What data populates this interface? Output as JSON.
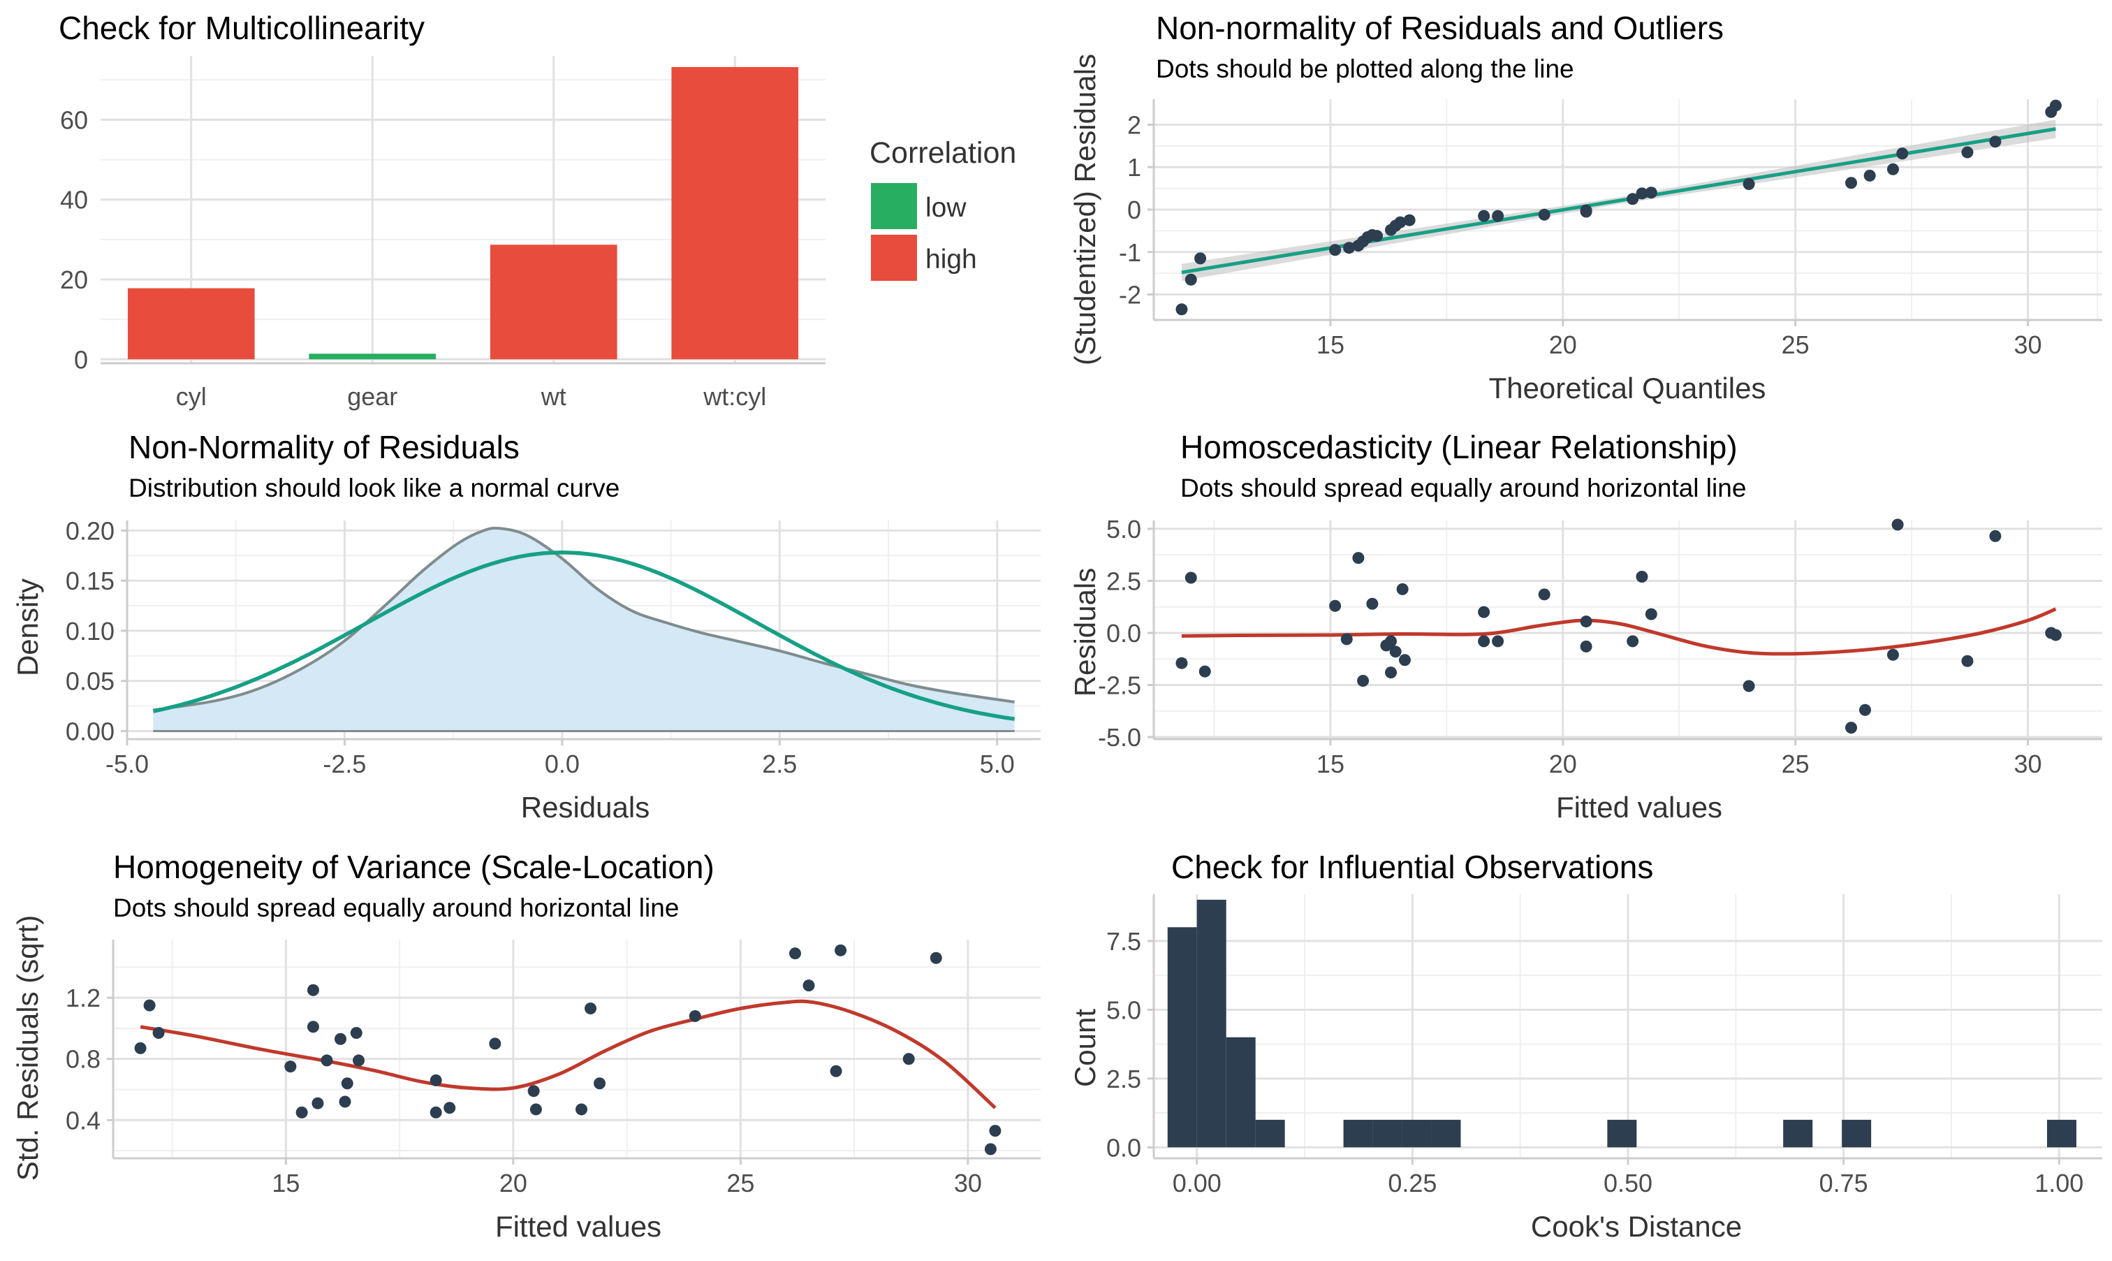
{
  "colors": {
    "high": "#e74c3c",
    "low": "#27ae60",
    "dark": "#2c3e50",
    "line_green": "#16a085",
    "line_red": "#c0392b",
    "density_fill": "#d4e8f6",
    "density_line": "#7f8c8d"
  },
  "chart_data": [
    {
      "id": "multicollinearity",
      "type": "bar",
      "title": "Check for Multicollinearity",
      "subtitle": "",
      "xlabel": "",
      "ylabel": "",
      "categories": [
        "cyl",
        "gear",
        "wt",
        "wt:cyl"
      ],
      "values": [
        17.8,
        1.4,
        28.7,
        73.2
      ],
      "correlation": [
        "high",
        "low",
        "high",
        "high"
      ],
      "ylim": [
        -1,
        76
      ],
      "yticks": [
        0,
        20,
        40,
        60
      ],
      "legend": {
        "title": "Correlation",
        "entries": [
          "low",
          "high"
        ],
        "position": "right"
      },
      "grid": true
    },
    {
      "id": "qq",
      "type": "scatter",
      "title": "Non-normality of Residuals and Outliers",
      "subtitle": "Dots should be plotted along the line",
      "xlabel": "Theoretical Quantiles",
      "ylabel": "(Studentized) Residuals",
      "xlim": [
        11.2,
        31.6
      ],
      "ylim": [
        -2.6,
        2.6
      ],
      "xticks": [
        15,
        20,
        25,
        30
      ],
      "yticks": [
        -2,
        -1,
        0,
        1,
        2
      ],
      "points": [
        [
          11.8,
          -2.35
        ],
        [
          12.0,
          -1.65
        ],
        [
          12.2,
          -1.15
        ],
        [
          15.1,
          -0.95
        ],
        [
          15.4,
          -0.9
        ],
        [
          15.6,
          -0.85
        ],
        [
          15.7,
          -0.75
        ],
        [
          15.8,
          -0.65
        ],
        [
          15.9,
          -0.6
        ],
        [
          16.0,
          -0.62
        ],
        [
          16.3,
          -0.48
        ],
        [
          16.4,
          -0.38
        ],
        [
          16.5,
          -0.3
        ],
        [
          16.7,
          -0.25
        ],
        [
          18.3,
          -0.15
        ],
        [
          18.6,
          -0.15
        ],
        [
          19.6,
          -0.12
        ],
        [
          20.5,
          -0.05
        ],
        [
          20.5,
          -0.02
        ],
        [
          21.5,
          0.25
        ],
        [
          21.7,
          0.38
        ],
        [
          21.9,
          0.4
        ],
        [
          24.0,
          0.6
        ],
        [
          26.2,
          0.63
        ],
        [
          26.6,
          0.8
        ],
        [
          27.1,
          0.95
        ],
        [
          27.3,
          1.32
        ],
        [
          28.7,
          1.35
        ],
        [
          29.3,
          1.6
        ],
        [
          30.5,
          2.3
        ],
        [
          30.6,
          2.45
        ]
      ],
      "line": {
        "x": [
          11.8,
          30.6
        ],
        "y": [
          -1.48,
          1.9
        ]
      },
      "band_halfwidth": [
        0.2,
        0.08,
        0.22
      ],
      "grid": true
    },
    {
      "id": "density",
      "type": "area",
      "title": "Non-Normality of Residuals",
      "subtitle": "Distribution should look like a normal curve",
      "xlabel": "Residuals",
      "ylabel": "Density",
      "xlim": [
        -5.0,
        5.5
      ],
      "ylim": [
        -0.008,
        0.21
      ],
      "xticks": [
        -5.0,
        -2.5,
        0.0,
        2.5,
        5.0
      ],
      "xtick_labels": [
        "-5.0",
        "-2.5",
        "0.0",
        "2.5",
        "5.0"
      ],
      "yticks": [
        0.0,
        0.05,
        0.1,
        0.15,
        0.2
      ],
      "ytick_labels": [
        "0.00",
        "0.05",
        "0.10",
        "0.15",
        "0.20"
      ],
      "density": {
        "x": [
          -4.7,
          -4.0,
          -3.5,
          -3.0,
          -2.5,
          -2.0,
          -1.6,
          -1.2,
          -0.9,
          -0.7,
          -0.4,
          0.0,
          0.4,
          0.8,
          1.2,
          1.6,
          2.0,
          2.5,
          3.0,
          3.5,
          4.0,
          4.5,
          5.2
        ],
        "y": [
          0.021,
          0.03,
          0.042,
          0.062,
          0.09,
          0.128,
          0.16,
          0.187,
          0.2,
          0.202,
          0.195,
          0.172,
          0.142,
          0.12,
          0.108,
          0.098,
          0.09,
          0.08,
          0.068,
          0.057,
          0.046,
          0.038,
          0.029
        ]
      },
      "normal_curve": {
        "mean": 0.0,
        "sd": 2.24
      },
      "grid": true
    },
    {
      "id": "homoscedasticity",
      "type": "scatter",
      "title": "Homoscedasticity (Linear Relationship)",
      "subtitle": "Dots should spread equally around horizontal line",
      "xlabel": "Fitted values",
      "ylabel": "Residuals",
      "xlim": [
        11.2,
        31.6
      ],
      "ylim": [
        -5.1,
        5.4
      ],
      "xticks": [
        15,
        20,
        25,
        30
      ],
      "yticks": [
        -5.0,
        -2.5,
        0.0,
        2.5,
        5.0
      ],
      "ytick_labels": [
        "-5.0",
        "-2.5",
        "0.0",
        "2.5",
        "5.0"
      ],
      "points": [
        [
          11.8,
          -1.45
        ],
        [
          12.0,
          2.65
        ],
        [
          12.3,
          -1.85
        ],
        [
          15.1,
          1.3
        ],
        [
          15.35,
          -0.3
        ],
        [
          15.6,
          3.6
        ],
        [
          15.7,
          -2.3
        ],
        [
          15.9,
          1.4
        ],
        [
          16.2,
          -0.6
        ],
        [
          16.3,
          -1.9
        ],
        [
          16.4,
          -0.9
        ],
        [
          16.6,
          -1.3
        ],
        [
          16.55,
          2.1
        ],
        [
          16.3,
          -0.4
        ],
        [
          18.3,
          1.0
        ],
        [
          18.3,
          -0.4
        ],
        [
          18.6,
          -0.4
        ],
        [
          19.6,
          1.85
        ],
        [
          20.5,
          -0.65
        ],
        [
          20.5,
          0.55
        ],
        [
          21.5,
          -0.4
        ],
        [
          21.7,
          2.7
        ],
        [
          21.9,
          0.9
        ],
        [
          24.0,
          -2.55
        ],
        [
          26.2,
          -4.55
        ],
        [
          26.5,
          -3.7
        ],
        [
          27.1,
          -1.05
        ],
        [
          27.2,
          5.2
        ],
        [
          28.7,
          -1.35
        ],
        [
          29.3,
          4.65
        ],
        [
          30.5,
          0.0
        ],
        [
          30.6,
          -0.1
        ]
      ],
      "smooth": {
        "x": [
          11.8,
          13.0,
          15.0,
          16.5,
          18.3,
          19.5,
          20.4,
          21.2,
          22.0,
          23.0,
          24.0,
          25.0,
          26.0,
          27.0,
          28.0,
          29.0,
          30.0,
          30.6
        ],
        "y": [
          -0.15,
          -0.12,
          -0.1,
          -0.05,
          -0.05,
          0.35,
          0.6,
          0.45,
          0.0,
          -0.6,
          -0.95,
          -1.0,
          -0.9,
          -0.7,
          -0.4,
          0.0,
          0.6,
          1.15
        ]
      },
      "grid": true
    },
    {
      "id": "scale_location",
      "type": "scatter",
      "title": "Homogeneity of Variance (Scale-Location)",
      "subtitle": "Dots should spread equally around horizontal line",
      "xlabel": "Fitted values",
      "ylabel": "Std. Residuals (sqrt)",
      "xlim": [
        11.2,
        31.6
      ],
      "ylim": [
        0.15,
        1.58
      ],
      "xticks": [
        15,
        20,
        25,
        30
      ],
      "yticks": [
        0.4,
        0.8,
        1.2
      ],
      "points": [
        [
          11.8,
          0.87
        ],
        [
          12.0,
          1.15
        ],
        [
          12.2,
          0.97
        ],
        [
          15.1,
          0.75
        ],
        [
          15.35,
          0.45
        ],
        [
          15.6,
          1.01
        ],
        [
          15.6,
          1.25
        ],
        [
          15.7,
          0.51
        ],
        [
          15.9,
          0.79
        ],
        [
          16.2,
          0.93
        ],
        [
          16.3,
          0.52
        ],
        [
          16.35,
          0.64
        ],
        [
          16.55,
          0.97
        ],
        [
          16.6,
          0.79
        ],
        [
          18.3,
          0.66
        ],
        [
          18.3,
          0.45
        ],
        [
          18.6,
          0.48
        ],
        [
          19.6,
          0.9
        ],
        [
          20.45,
          0.59
        ],
        [
          20.5,
          0.47
        ],
        [
          21.5,
          0.47
        ],
        [
          21.7,
          1.13
        ],
        [
          21.9,
          0.64
        ],
        [
          24.0,
          1.08
        ],
        [
          26.2,
          1.49
        ],
        [
          26.5,
          1.28
        ],
        [
          27.1,
          0.72
        ],
        [
          27.2,
          1.51
        ],
        [
          28.7,
          0.8
        ],
        [
          29.3,
          1.46
        ],
        [
          30.5,
          0.21
        ],
        [
          30.6,
          0.33
        ]
      ],
      "smooth": {
        "x": [
          11.8,
          13.0,
          14.5,
          16.0,
          17.0,
          18.0,
          19.0,
          20.0,
          21.0,
          22.0,
          23.0,
          24.0,
          25.0,
          26.0,
          26.6,
          27.5,
          28.5,
          29.5,
          30.6
        ],
        "y": [
          1.01,
          0.95,
          0.86,
          0.78,
          0.72,
          0.65,
          0.61,
          0.61,
          0.7,
          0.85,
          0.98,
          1.06,
          1.13,
          1.17,
          1.17,
          1.1,
          0.97,
          0.78,
          0.48
        ]
      },
      "grid": true
    },
    {
      "id": "cooks",
      "type": "bar",
      "title": "Check for Influential Observations",
      "subtitle": "",
      "xlabel": "Cook's Distance",
      "ylabel": "Count",
      "xlim": [
        -0.05,
        1.05
      ],
      "ylim": [
        -0.4,
        9.2
      ],
      "xticks": [
        0.0,
        0.25,
        0.5,
        0.75,
        1.0
      ],
      "xtick_labels": [
        "0.00",
        "0.25",
        "0.50",
        "0.75",
        "1.00"
      ],
      "yticks": [
        0.0,
        2.5,
        5.0,
        7.5
      ],
      "ytick_labels": [
        "0.0",
        "2.5",
        "5.0",
        "7.5"
      ],
      "bin_width": 0.034,
      "bins": [
        [
          -0.017,
          8
        ],
        [
          0.017,
          9
        ],
        [
          0.051,
          4
        ],
        [
          0.085,
          1
        ],
        [
          0.187,
          1
        ],
        [
          0.221,
          1
        ],
        [
          0.255,
          1
        ],
        [
          0.289,
          1
        ],
        [
          0.493,
          1
        ],
        [
          0.697,
          1
        ],
        [
          0.765,
          1
        ],
        [
          1.003,
          1
        ]
      ],
      "grid": true
    }
  ]
}
